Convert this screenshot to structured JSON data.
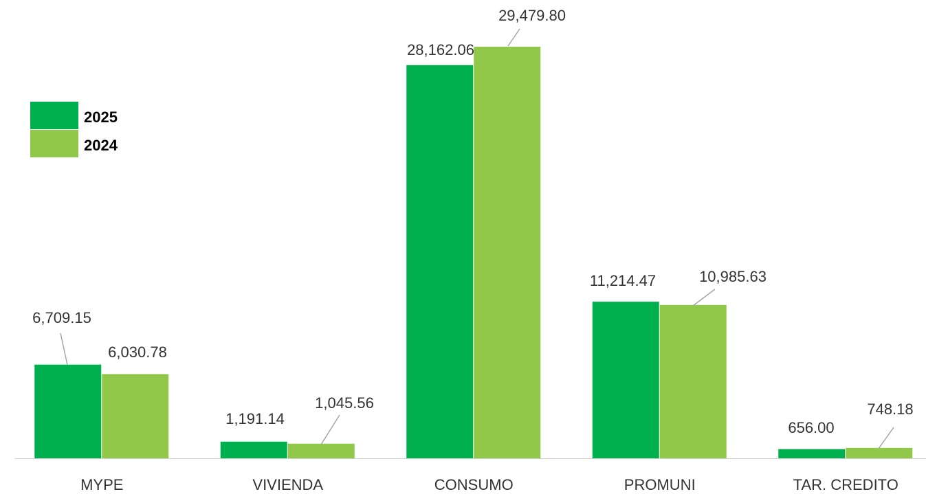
{
  "chart_data": {
    "type": "bar",
    "categories": [
      "MYPE",
      "VIVIENDA",
      "CONSUMO",
      "PROMUNI",
      "TAR. CREDITO"
    ],
    "series": [
      {
        "name": "2025",
        "color": "#00b04f",
        "values": [
          6709.15,
          1191.14,
          28162.06,
          11214.47,
          656.0
        ],
        "value_labels": [
          "6,709.15",
          "1,191.14",
          "28,162.06",
          "11,214.47",
          "656.00"
        ]
      },
      {
        "name": "2024",
        "color": "#92c84a",
        "values": [
          6030.78,
          1045.56,
          29479.8,
          10985.63,
          748.18
        ],
        "value_labels": [
          "6,030.78",
          "1,045.56",
          "29,479.80",
          "10,985.63",
          "748.18"
        ]
      }
    ],
    "legend": "upper left"
  }
}
